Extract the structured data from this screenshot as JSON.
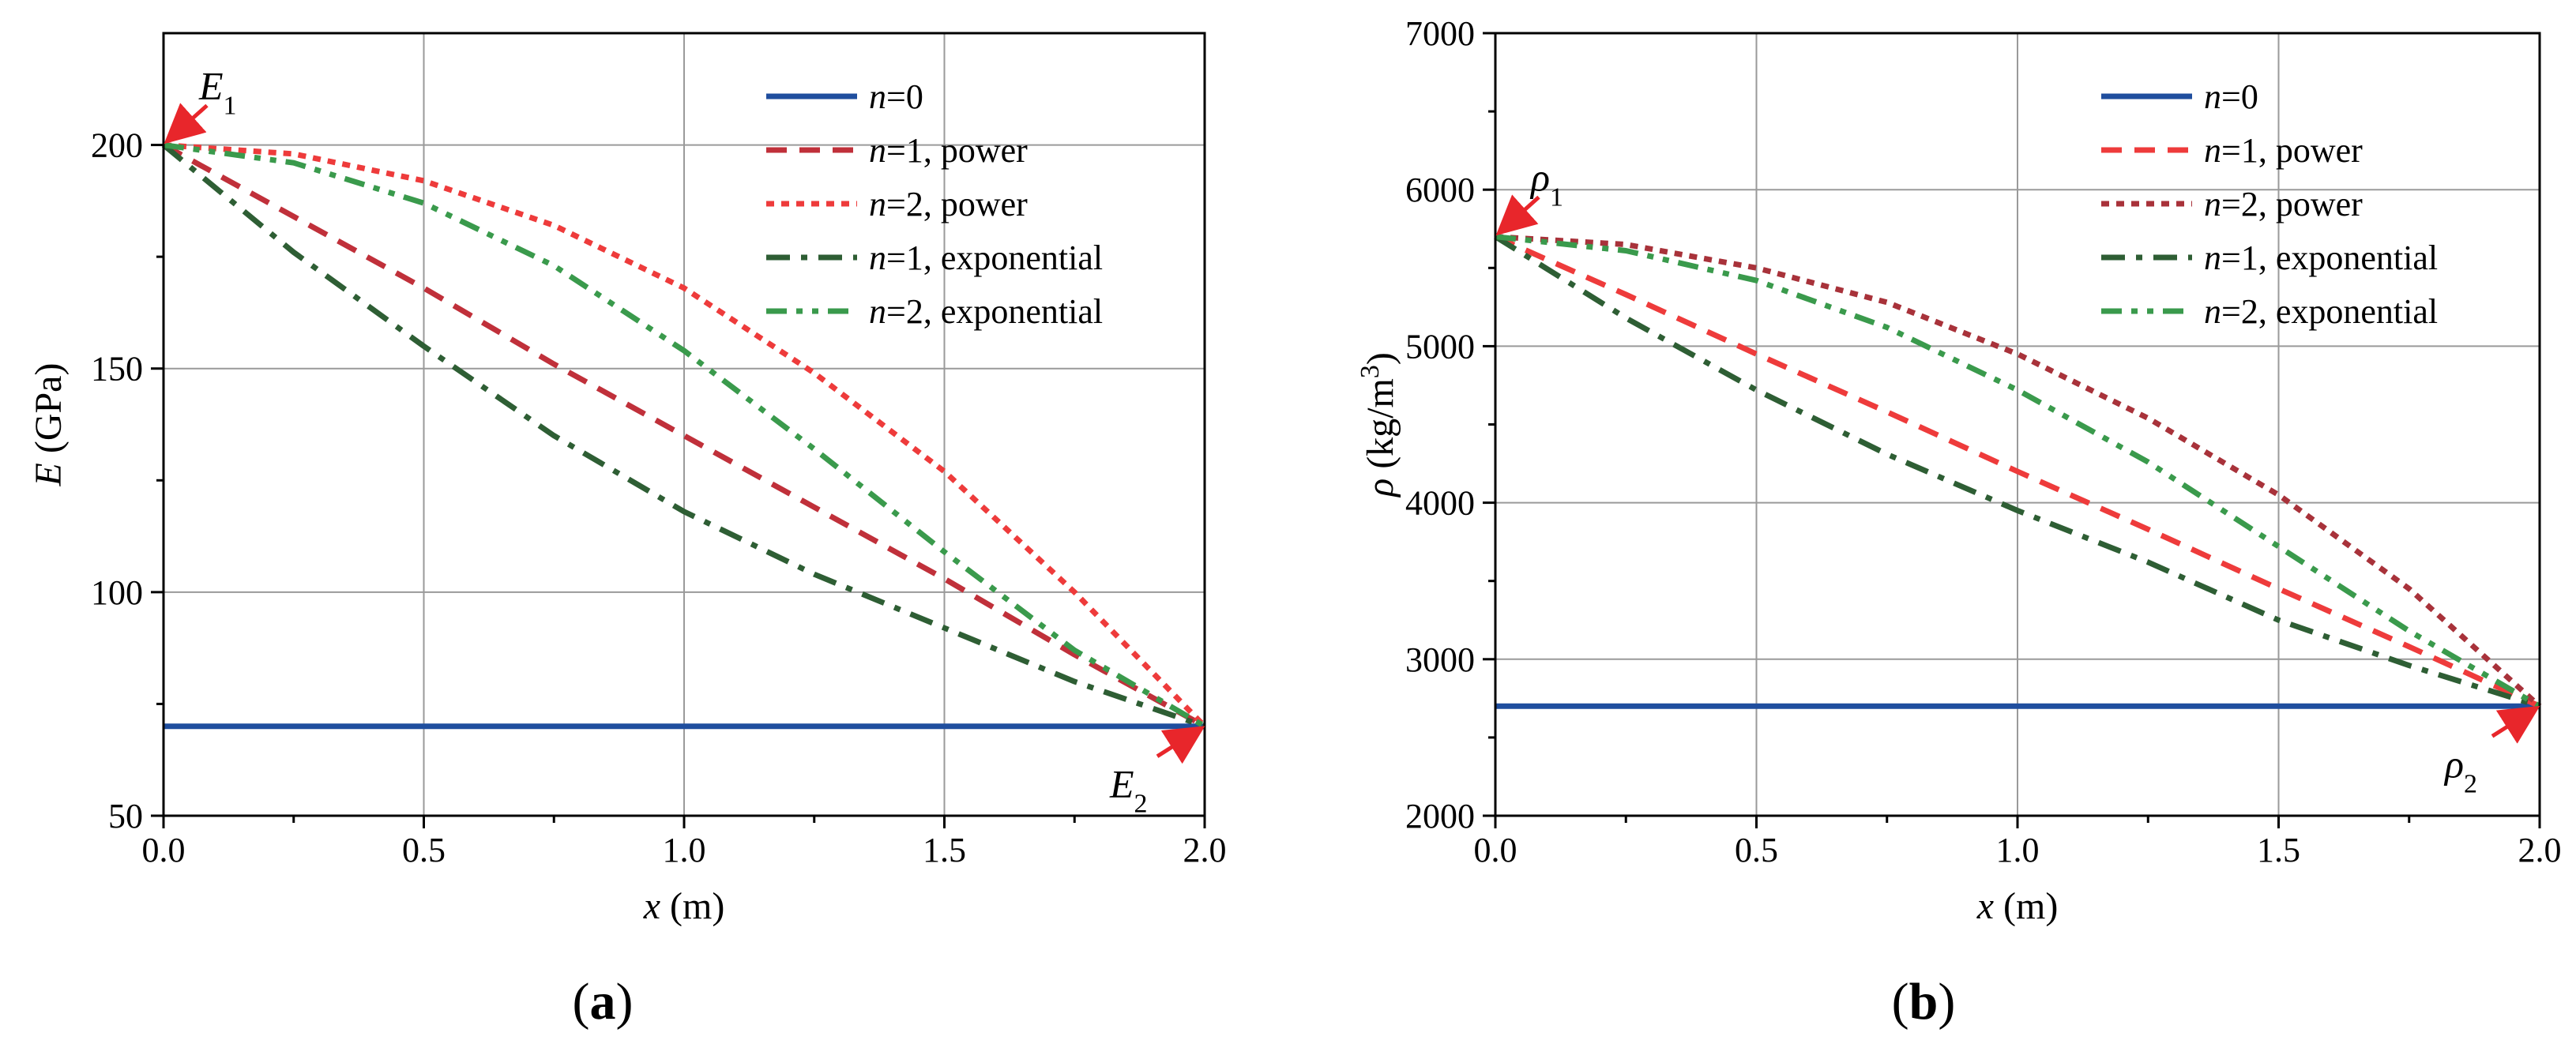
{
  "chart_data": [
    {
      "type": "line",
      "panel_label": "(a)",
      "panel_label_parts": [
        "(",
        "a",
        ")"
      ],
      "xlabel": "x (m)",
      "xlabel_parts": [
        "x",
        " (m)"
      ],
      "ylabel": "E (GPa)",
      "ylabel_parts": [
        "E",
        " (GPa)"
      ],
      "xlim": [
        0,
        2.0
      ],
      "ylim": [
        50,
        225
      ],
      "xticks": [
        "0.0",
        "0.5",
        "1.0",
        "1.5",
        "2.0"
      ],
      "xtick_values": [
        0,
        0.5,
        1.0,
        1.5,
        2.0
      ],
      "yticks": [
        "50",
        "100",
        "150",
        "200"
      ],
      "ytick_values": [
        50,
        100,
        150,
        200
      ],
      "grid": true,
      "legend_position": "top-right",
      "annotations": [
        {
          "base": "E",
          "sub": "1",
          "x": 0,
          "y": 200
        },
        {
          "base": "E",
          "sub": "2",
          "x": 2.0,
          "y": 70
        }
      ],
      "x": [
        0,
        0.25,
        0.5,
        0.75,
        1.0,
        1.25,
        1.5,
        1.75,
        2.0
      ],
      "series": [
        {
          "name": "n=0",
          "name_parts": [
            "n",
            "=0"
          ],
          "color": "#1f4e9e",
          "dash": "solid",
          "values": [
            70,
            70,
            70,
            70,
            70,
            70,
            70,
            70,
            70
          ]
        },
        {
          "name": "n=1, power",
          "name_parts": [
            "n",
            "=1, power"
          ],
          "color": "#c0303a",
          "dash": "dash",
          "values": [
            200,
            184,
            168,
            151,
            135,
            119,
            103,
            86,
            70
          ]
        },
        {
          "name": "n=2, power",
          "name_parts": [
            "n",
            "=2, power"
          ],
          "color": "#ee3b3b",
          "dash": "dot",
          "values": [
            200,
            198,
            192,
            182,
            168,
            149,
            127,
            100,
            70
          ]
        },
        {
          "name": "n=1, exponential",
          "name_parts": [
            "n",
            "=1, exponential"
          ],
          "color": "#2e5e34",
          "dash": "dashdot",
          "values": [
            200,
            176,
            155,
            135,
            118,
            104,
            92,
            80,
            70
          ]
        },
        {
          "name": "n=2, exponential",
          "name_parts": [
            "n",
            "=2, exponential"
          ],
          "color": "#3a9a4c",
          "dash": "dashdotdot",
          "values": [
            200,
            196,
            187,
            173,
            154,
            132,
            109,
            87,
            70
          ]
        }
      ]
    },
    {
      "type": "line",
      "panel_label": "(b)",
      "panel_label_parts": [
        "(",
        "b",
        ")"
      ],
      "xlabel": "x (m)",
      "xlabel_parts": [
        "x",
        " (m)"
      ],
      "ylabel": "ρ (kg/m³)",
      "ylabel_parts": [
        "ρ",
        " (kg/m",
        "3",
        ")"
      ],
      "xlim": [
        0,
        2.0
      ],
      "ylim": [
        2000,
        7000
      ],
      "xticks": [
        "0.0",
        "0.5",
        "1.0",
        "1.5",
        "2.0"
      ],
      "xtick_values": [
        0,
        0.5,
        1.0,
        1.5,
        2.0
      ],
      "yticks": [
        "2000",
        "3000",
        "4000",
        "5000",
        "6000",
        "7000"
      ],
      "ytick_values": [
        2000,
        3000,
        4000,
        5000,
        6000,
        7000
      ],
      "grid": true,
      "legend_position": "top-right",
      "annotations": [
        {
          "base": "ρ",
          "sub": "1",
          "x": 0,
          "y": 5700
        },
        {
          "base": "ρ",
          "sub": "2",
          "x": 2.0,
          "y": 2700
        }
      ],
      "x": [
        0,
        0.25,
        0.5,
        0.75,
        1.0,
        1.25,
        1.5,
        1.75,
        2.0
      ],
      "series": [
        {
          "name": "n=0",
          "name_parts": [
            "n",
            "=0"
          ],
          "color": "#1f4e9e",
          "dash": "solid",
          "values": [
            2700,
            2700,
            2700,
            2700,
            2700,
            2700,
            2700,
            2700,
            2700
          ]
        },
        {
          "name": "n=1, power",
          "name_parts": [
            "n",
            "=1, power"
          ],
          "color": "#ee3b3b",
          "dash": "dash",
          "values": [
            5700,
            5330,
            4950,
            4580,
            4200,
            3830,
            3450,
            3080,
            2700
          ]
        },
        {
          "name": "n=2, power",
          "name_parts": [
            "n",
            "=2, power"
          ],
          "color": "#a8323a",
          "dash": "dot",
          "values": [
            5700,
            5650,
            5500,
            5280,
            4950,
            4540,
            4050,
            3450,
            2700
          ]
        },
        {
          "name": "n=1, exponential",
          "name_parts": [
            "n",
            "=1, exponential"
          ],
          "color": "#2e5e34",
          "dash": "dashdot",
          "values": [
            5700,
            5180,
            4720,
            4310,
            3950,
            3620,
            3250,
            2960,
            2700
          ]
        },
        {
          "name": "n=2, exponential",
          "name_parts": [
            "n",
            "=2, exponential"
          ],
          "color": "#3a9a4c",
          "dash": "dashdotdot",
          "values": [
            5700,
            5610,
            5420,
            5120,
            4720,
            4260,
            3720,
            3180,
            2700
          ]
        }
      ]
    }
  ]
}
